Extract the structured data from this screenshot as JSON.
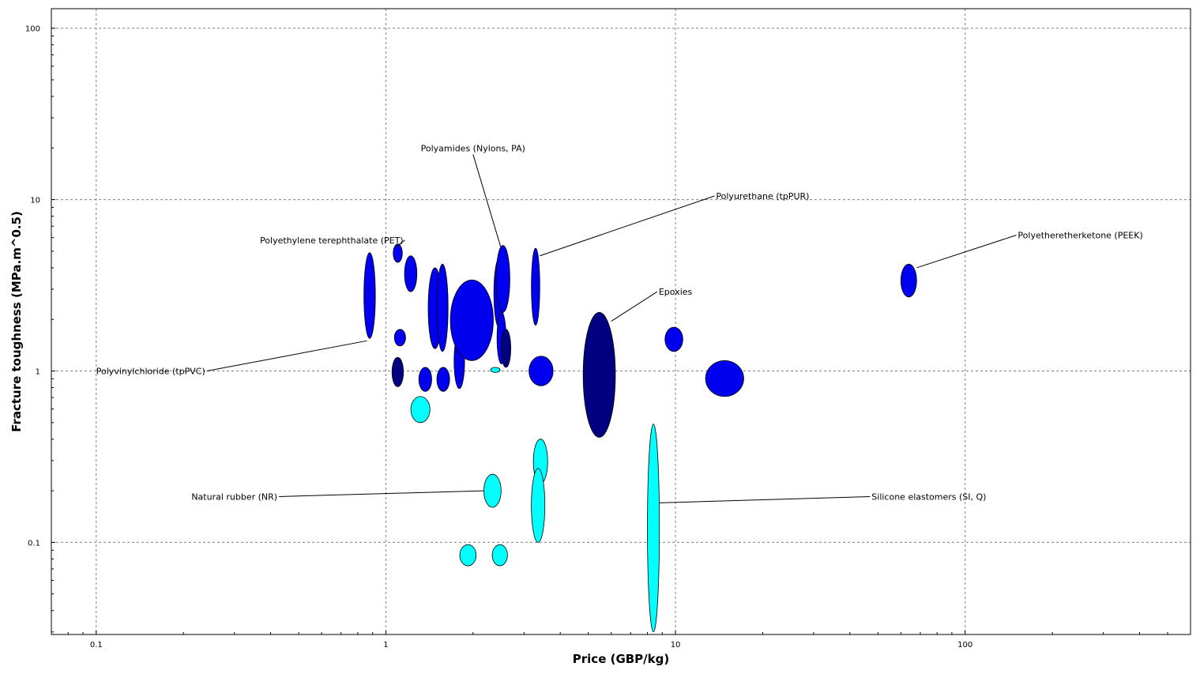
{
  "chart_data": {
    "type": "scatter",
    "title": "",
    "xlabel": "Price (GBP/kg)",
    "ylabel": "Fracture toughness (MPa.m^0.5)",
    "x_scale": "log",
    "y_scale": "log",
    "xlim": [
      0.07,
      600
    ],
    "ylim": [
      0.029,
      130
    ],
    "x_ticks": [
      "0.1",
      "1",
      "10",
      "100"
    ],
    "y_ticks": [
      "0.1",
      "1",
      "10",
      "100"
    ],
    "grid": true,
    "colors": {
      "blue": "#0000ee",
      "navy": "#000080",
      "cyan": "#00ffff"
    },
    "bubbles": [
      {
        "x": [
          0.84,
          0.92
        ],
        "y": [
          1.55,
          4.9
        ],
        "color": "blue"
      },
      {
        "x": [
          1.06,
          1.14
        ],
        "y": [
          4.3,
          5.5
        ],
        "color": "blue"
      },
      {
        "x": [
          1.16,
          1.28
        ],
        "y": [
          2.9,
          4.7
        ],
        "color": "blue"
      },
      {
        "x": [
          1.07,
          1.17
        ],
        "y": [
          1.4,
          1.75
        ],
        "color": "blue"
      },
      {
        "x": [
          1.05,
          1.15
        ],
        "y": [
          0.81,
          1.2
        ],
        "color": "navy"
      },
      {
        "x": [
          1.3,
          1.44
        ],
        "y": [
          0.76,
          1.05
        ],
        "color": "blue"
      },
      {
        "x": [
          1.4,
          1.56
        ],
        "y": [
          1.35,
          4.0
        ],
        "color": "blue"
      },
      {
        "x": [
          1.5,
          1.64
        ],
        "y": [
          1.3,
          4.2
        ],
        "color": "blue"
      },
      {
        "x": [
          1.5,
          1.66
        ],
        "y": [
          0.76,
          1.05
        ],
        "color": "blue"
      },
      {
        "x": [
          1.72,
          1.87
        ],
        "y": [
          0.79,
          1.65
        ],
        "color": "blue"
      },
      {
        "x": [
          1.67,
          2.35
        ],
        "y": [
          1.15,
          3.4
        ],
        "color": "blue"
      },
      {
        "x": [
          2.36,
          2.56
        ],
        "y": [
          1.8,
          4.5
        ],
        "color": "blue"
      },
      {
        "x": [
          2.4,
          2.68
        ],
        "y": [
          2.2,
          5.4
        ],
        "color": "blue"
      },
      {
        "x": [
          2.42,
          2.6
        ],
        "y": [
          1.1,
          2.2
        ],
        "color": "blue"
      },
      {
        "x": [
          2.5,
          2.7
        ],
        "y": [
          1.05,
          1.75
        ],
        "color": "navy"
      },
      {
        "x": [
          3.18,
          3.4
        ],
        "y": [
          1.85,
          5.2
        ],
        "color": "blue"
      },
      {
        "x": [
          3.12,
          3.78
        ],
        "y": [
          0.82,
          1.22
        ],
        "color": "blue"
      },
      {
        "x": [
          4.8,
          6.2
        ],
        "y": [
          0.41,
          2.2
        ],
        "color": "navy"
      },
      {
        "x": [
          9.2,
          10.6
        ],
        "y": [
          1.3,
          1.8
        ],
        "color": "blue"
      },
      {
        "x": [
          12.7,
          17.2
        ],
        "y": [
          0.71,
          1.15
        ],
        "color": "blue"
      },
      {
        "x": [
          60,
          68
        ],
        "y": [
          2.7,
          4.2
        ],
        "color": "blue"
      },
      {
        "x": [
          2.3,
          2.48
        ],
        "y": [
          0.98,
          1.05
        ],
        "color": "cyan"
      },
      {
        "x": [
          1.22,
          1.42
        ],
        "y": [
          0.5,
          0.71
        ],
        "color": "cyan"
      },
      {
        "x": [
          2.18,
          2.5
        ],
        "y": [
          0.16,
          0.25
        ],
        "color": "cyan"
      },
      {
        "x": [
          3.23,
          3.62
        ],
        "y": [
          0.22,
          0.4
        ],
        "color": "cyan"
      },
      {
        "x": [
          3.18,
          3.54
        ],
        "y": [
          0.1,
          0.27
        ],
        "color": "cyan"
      },
      {
        "x": [
          1.8,
          2.05
        ],
        "y": [
          0.073,
          0.097
        ],
        "color": "cyan"
      },
      {
        "x": [
          2.33,
          2.63
        ],
        "y": [
          0.073,
          0.097
        ],
        "color": "cyan"
      },
      {
        "x": [
          8.0,
          8.8
        ],
        "y": [
          0.03,
          0.49
        ],
        "color": "cyan"
      }
    ],
    "annotations": [
      {
        "text": "Polyamides (Nylons, PA)",
        "label_x": 2.0,
        "label_y": 20,
        "anchor": "middle",
        "point_x": 2.5,
        "point_y": 5.2
      },
      {
        "text": "Polyurethane (tpPUR)",
        "label_x": 20,
        "label_y": 10.5,
        "anchor": "middle",
        "point_x": 3.4,
        "point_y": 4.7
      },
      {
        "text": "Polyethylene terephthalate (PET)",
        "label_x": 0.65,
        "label_y": 5.8,
        "anchor": "middle",
        "point_x": 1.08,
        "point_y": 5.3
      },
      {
        "text": "Polyetheretherketone (PEEK)",
        "label_x": 250,
        "label_y": 6.2,
        "anchor": "middle",
        "point_x": 68,
        "point_y": 4.0
      },
      {
        "text": "Epoxies",
        "label_x": 10,
        "label_y": 2.9,
        "anchor": "middle",
        "point_x": 6.0,
        "point_y": 1.95
      },
      {
        "text": "Polyvinylchloride (tpPVC)",
        "label_x": 0.1,
        "label_y": 1.0,
        "anchor": "start",
        "point_x": 0.86,
        "point_y": 1.5
      },
      {
        "text": "Natural rubber (NR)",
        "label_x": 0.3,
        "label_y": 0.185,
        "anchor": "middle",
        "point_x": 2.18,
        "point_y": 0.2
      },
      {
        "text": "Silicone elastomers (SI, Q)",
        "label_x": 75,
        "label_y": 0.185,
        "anchor": "middle",
        "point_x": 8.8,
        "point_y": 0.17
      }
    ]
  }
}
